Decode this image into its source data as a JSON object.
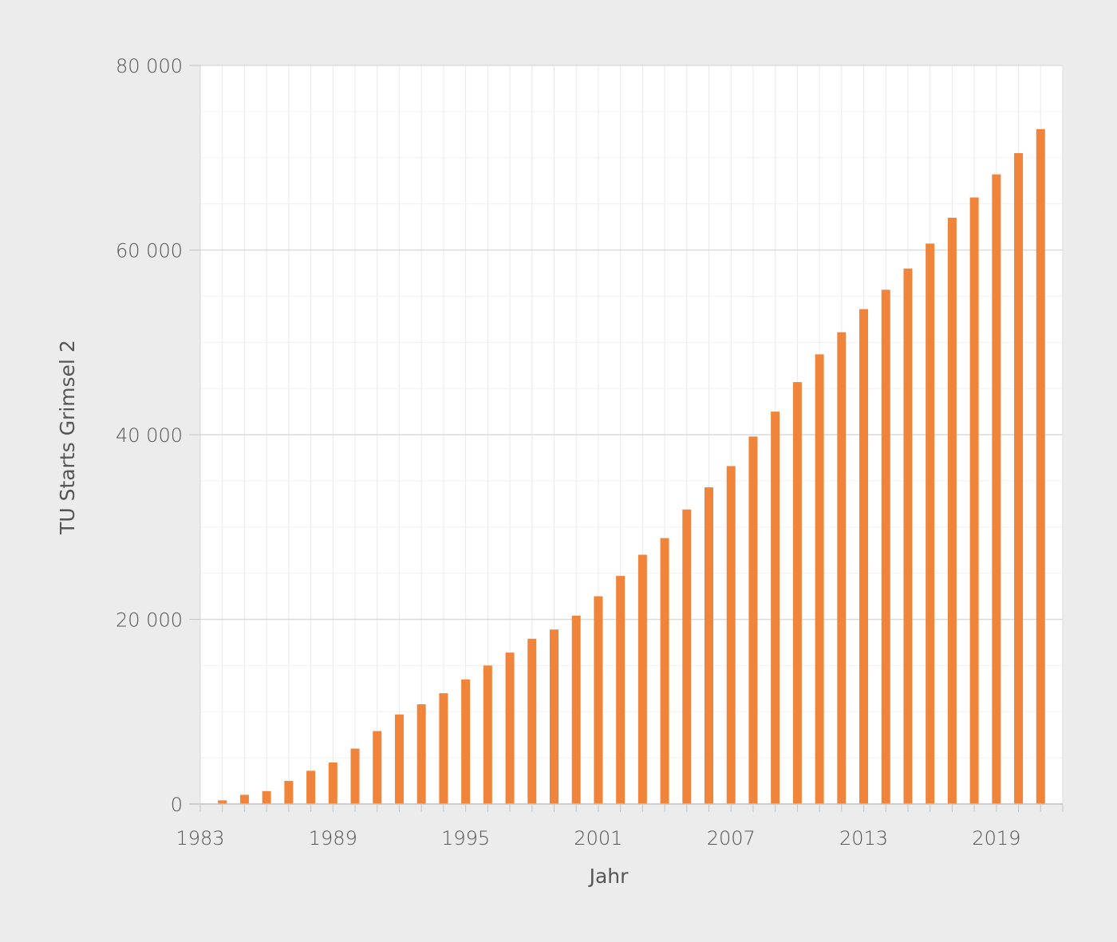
{
  "chart_data": {
    "type": "bar",
    "ylabel": "TU Starts Grimsel 2",
    "xlabel": "Jahr",
    "ylim": [
      0,
      80000
    ],
    "xlim": [
      1983,
      2022
    ],
    "y_ticks": [
      0,
      20000,
      40000,
      60000,
      80000
    ],
    "y_tick_labels": [
      "0",
      "20 000",
      "40 000",
      "60 000",
      "80 000"
    ],
    "x_ticks": [
      1983,
      1989,
      1995,
      2001,
      2007,
      2013,
      2019
    ],
    "x_tick_labels": [
      "1983",
      "1989",
      "1995",
      "2001",
      "2007",
      "2013",
      "2019"
    ],
    "grid": true,
    "bar_color": "#f0843b",
    "categories": [
      1984,
      1985,
      1986,
      1987,
      1988,
      1989,
      1990,
      1991,
      1992,
      1993,
      1994,
      1995,
      1996,
      1997,
      1998,
      1999,
      2000,
      2001,
      2002,
      2003,
      2004,
      2005,
      2006,
      2007,
      2008,
      2009,
      2010,
      2011,
      2012,
      2013,
      2014,
      2015,
      2016,
      2017,
      2018,
      2019,
      2020,
      2021
    ],
    "values": [
      400,
      1000,
      1400,
      2500,
      3600,
      4500,
      6000,
      7900,
      9700,
      10800,
      12000,
      13500,
      15000,
      16400,
      17900,
      18900,
      20400,
      22500,
      24700,
      27000,
      28800,
      31900,
      34300,
      36600,
      39800,
      42500,
      45700,
      48700,
      51100,
      53600,
      55700,
      58000,
      60700,
      63500,
      65700,
      68200,
      70500,
      73100
    ]
  }
}
